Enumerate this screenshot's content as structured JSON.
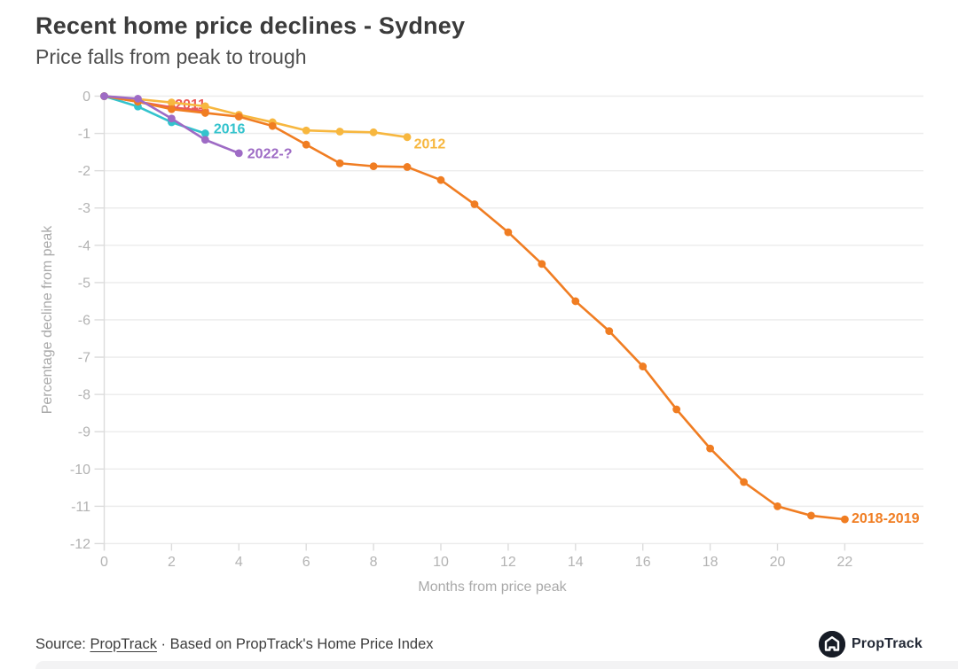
{
  "header": {
    "title": "Recent home price declines - Sydney",
    "subtitle": "Price falls from peak to trough"
  },
  "footer": {
    "source_prefix": "Source: ",
    "source_link": "PropTrack",
    "source_rest": " · Based on PropTrack's Home Price Index",
    "logo_text": "PropTrack"
  },
  "colors": {
    "grid": "#ececec",
    "axis_line": "#dcdcdc",
    "tick_text": "#b3b3b3",
    "axis_title": "#a9a9a9"
  },
  "chart_data": {
    "type": "line",
    "title": "Recent home price declines - Sydney",
    "subtitle": "Price falls from peak to trough",
    "xlabel": "Months from price peak",
    "ylabel": "Percentage decline from peak",
    "xlim": [
      0,
      23.5
    ],
    "ylim": [
      -12,
      0
    ],
    "x_ticks": [
      0,
      2,
      4,
      6,
      8,
      10,
      12,
      14,
      16,
      18,
      20,
      22
    ],
    "y_ticks": [
      0,
      -1,
      -2,
      -3,
      -4,
      -5,
      -6,
      -7,
      -8,
      -9,
      -10,
      -11,
      -12
    ],
    "grid": "horizontal",
    "legend_position": "inline-labels",
    "series": [
      {
        "name": "2011",
        "color": "#ea5c59",
        "x": [
          0,
          1,
          2,
          3
        ],
        "values": [
          0,
          -0.15,
          -0.3,
          -0.4
        ],
        "label": {
          "x": 2.1,
          "y": -0.22,
          "anchor": "start"
        }
      },
      {
        "name": "2012",
        "color": "#f7b73f",
        "x": [
          0,
          1,
          2,
          3,
          4,
          5,
          6,
          7,
          8,
          9
        ],
        "values": [
          0,
          -0.08,
          -0.17,
          -0.27,
          -0.5,
          -0.7,
          -0.92,
          -0.95,
          -0.97,
          -1.1
        ],
        "label": {
          "x": 9.2,
          "y": -1.28,
          "anchor": "start"
        }
      },
      {
        "name": "2016",
        "color": "#33c3cd",
        "x": [
          0,
          1,
          2,
          3
        ],
        "values": [
          0,
          -0.28,
          -0.7,
          -1.0
        ],
        "label": {
          "x": 3.25,
          "y": -0.88,
          "anchor": "start"
        }
      },
      {
        "name": "2018-2019",
        "color": "#f07d22",
        "x": [
          0,
          1,
          2,
          3,
          4,
          5,
          6,
          7,
          8,
          9,
          10,
          11,
          12,
          13,
          14,
          15,
          16,
          17,
          18,
          19,
          20,
          21,
          22
        ],
        "values": [
          0,
          -0.15,
          -0.35,
          -0.45,
          -0.55,
          -0.8,
          -1.3,
          -1.8,
          -1.88,
          -1.9,
          -2.25,
          -2.9,
          -3.65,
          -4.5,
          -5.5,
          -6.3,
          -7.25,
          -8.4,
          -9.45,
          -10.35,
          -11.0,
          -11.25,
          -11.35
        ],
        "label": {
          "x": 22.2,
          "y": -11.32,
          "anchor": "start"
        }
      },
      {
        "name": "2022-?",
        "color": "#9e6bc5",
        "x": [
          0,
          1,
          2,
          3,
          4
        ],
        "values": [
          0,
          -0.07,
          -0.6,
          -1.17,
          -1.53
        ],
        "label": {
          "x": 4.25,
          "y": -1.55,
          "anchor": "start"
        }
      }
    ]
  }
}
